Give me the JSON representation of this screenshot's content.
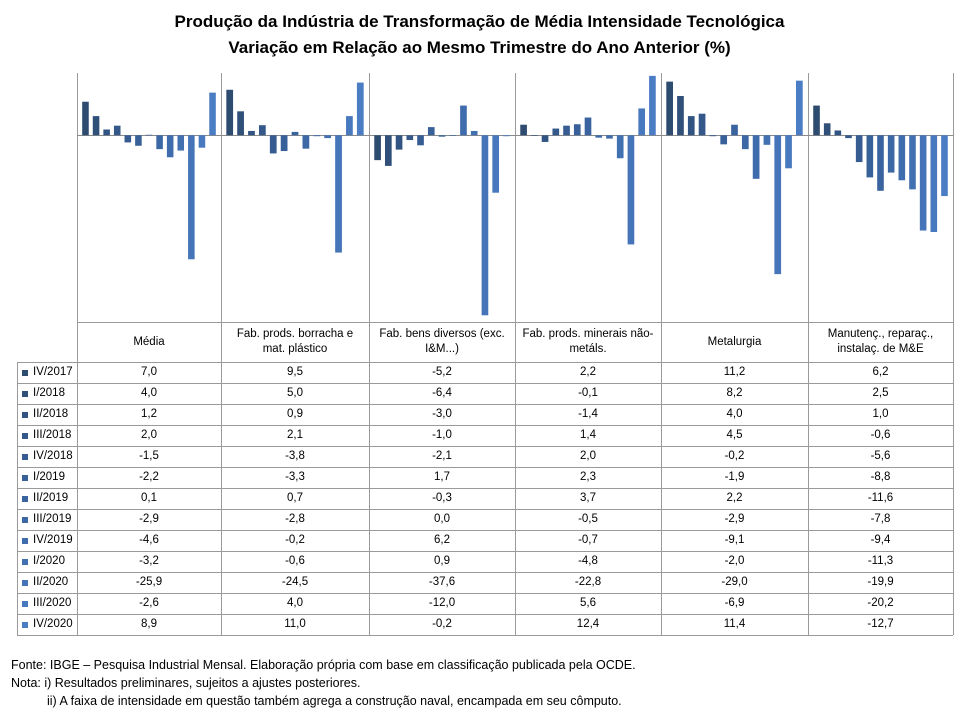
{
  "chart_data": {
    "type": "bar",
    "title": "Produção da Indústria de Transformação de Média Intensidade Tecnológica",
    "subtitle": "Variação em Relação ao Mesmo Trimestre do Ano Anterior (%)",
    "categories": [
      "Média",
      "Fab. prods. borracha e mat. plástico",
      "Fab. bens diversos (exc. I&M...)",
      "Fab. prods. minerais não-metáls.",
      "Metalurgia",
      "Manutenç., reparaç., instalaç. de M&E"
    ],
    "category_lines": [
      [
        "Média"
      ],
      [
        "Fab. prods. borracha e",
        "mat. plástico"
      ],
      [
        "Fab. bens diversos (exc.",
        "I&M...)"
      ],
      [
        "Fab. prods. minerais não-",
        "metáls."
      ],
      [
        "Metalurgia"
      ],
      [
        "Manutenç., reparaç.,",
        "instalaç. de M&E"
      ]
    ],
    "series": [
      {
        "name": "IV/2017",
        "color": "#2e4c70",
        "values": [
          7.0,
          9.5,
          -5.2,
          2.2,
          11.2,
          6.2
        ]
      },
      {
        "name": "I/2018",
        "color": "#305079",
        "values": [
          4.0,
          5.0,
          -6.4,
          -0.1,
          8.2,
          2.5
        ]
      },
      {
        "name": "II/2018",
        "color": "#325482",
        "values": [
          1.2,
          0.9,
          -3.0,
          -1.4,
          4.0,
          1.0
        ]
      },
      {
        "name": "III/2018",
        "color": "#34588a",
        "values": [
          2.0,
          2.1,
          -1.0,
          1.4,
          4.5,
          -0.6
        ]
      },
      {
        "name": "IV/2018",
        "color": "#365c92",
        "values": [
          -1.5,
          -3.8,
          -2.1,
          2.0,
          -0.2,
          -5.6
        ]
      },
      {
        "name": "I/2019",
        "color": "#386099",
        "values": [
          -2.2,
          -3.3,
          1.7,
          2.3,
          -1.9,
          -8.8
        ]
      },
      {
        "name": "II/2019",
        "color": "#3a64a0",
        "values": [
          0.1,
          0.7,
          -0.3,
          3.7,
          2.2,
          -11.6
        ]
      },
      {
        "name": "III/2019",
        "color": "#3c68a6",
        "values": [
          -2.9,
          -2.8,
          0.0,
          -0.5,
          -2.9,
          -7.8
        ]
      },
      {
        "name": "IV/2019",
        "color": "#3f6cac",
        "values": [
          -4.6,
          -0.2,
          6.2,
          -0.7,
          -9.1,
          -9.4
        ]
      },
      {
        "name": "I/2020",
        "color": "#4271b2",
        "values": [
          -3.2,
          -0.6,
          0.9,
          -4.8,
          -2.0,
          -11.3
        ]
      },
      {
        "name": "II/2020",
        "color": "#4575b8",
        "values": [
          -25.9,
          -24.5,
          -37.6,
          -22.8,
          -29.0,
          -19.9
        ]
      },
      {
        "name": "III/2020",
        "color": "#4879be",
        "values": [
          -2.6,
          4.0,
          -12.0,
          5.6,
          -6.9,
          -20.2
        ]
      },
      {
        "name": "IV/2020",
        "color": "#4b7dc4",
        "values": [
          8.9,
          11.0,
          -0.2,
          12.4,
          11.4,
          -12.7
        ]
      }
    ],
    "ylim": [
      -39,
      13
    ],
    "grid": false,
    "legend": "data-table"
  },
  "table_values": [
    [
      "7,0",
      "9,5",
      "-5,2",
      "2,2",
      "11,2",
      "6,2"
    ],
    [
      "4,0",
      "5,0",
      "-6,4",
      "-0,1",
      "8,2",
      "2,5"
    ],
    [
      "1,2",
      "0,9",
      "-3,0",
      "-1,4",
      "4,0",
      "1,0"
    ],
    [
      "2,0",
      "2,1",
      "-1,0",
      "1,4",
      "4,5",
      "-0,6"
    ],
    [
      "-1,5",
      "-3,8",
      "-2,1",
      "2,0",
      "-0,2",
      "-5,6"
    ],
    [
      "-2,2",
      "-3,3",
      "1,7",
      "2,3",
      "-1,9",
      "-8,8"
    ],
    [
      "0,1",
      "0,7",
      "-0,3",
      "3,7",
      "2,2",
      "-11,6"
    ],
    [
      "-2,9",
      "-2,8",
      "0,0",
      "-0,5",
      "-2,9",
      "-7,8"
    ],
    [
      "-4,6",
      "-0,2",
      "6,2",
      "-0,7",
      "-9,1",
      "-9,4"
    ],
    [
      "-3,2",
      "-0,6",
      "0,9",
      "-4,8",
      "-2,0",
      "-11,3"
    ],
    [
      "-25,9",
      "-24,5",
      "-37,6",
      "-22,8",
      "-29,0",
      "-19,9"
    ],
    [
      "-2,6",
      "4,0",
      "-12,0",
      "5,6",
      "-6,9",
      "-20,2"
    ],
    [
      "8,9",
      "11,0",
      "-0,2",
      "12,4",
      "11,4",
      "-12,7"
    ]
  ],
  "notes": {
    "source": "Fonte: IBGE – Pesquisa Industrial Mensal. Elaboração própria com base em classificação publicada pela OCDE.",
    "note1": "Nota: i) Resultados preliminares, sujeitos a ajustes posteriores.",
    "note2": "ii) A faixa de intensidade em questão também agrega a construção naval, encampada em seu cômputo."
  }
}
